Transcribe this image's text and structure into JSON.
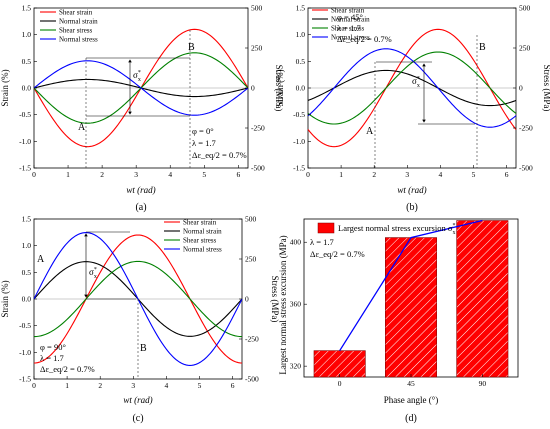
{
  "figure": {
    "panels": [
      {
        "id": "a",
        "label": "(a)"
      },
      {
        "id": "b",
        "label": "(b)"
      },
      {
        "id": "c",
        "label": "(c)"
      },
      {
        "id": "d",
        "label": "(d)"
      }
    ]
  },
  "chart_data": [
    {
      "panel": "(a)",
      "type": "line",
      "xlabel": "wt (rad)",
      "ylabel_left": "Strain (%)",
      "ylabel_right": "Stress (MPa)",
      "xlim": [
        0,
        6.2832
      ],
      "ylim_left": [
        -1.5,
        1.5
      ],
      "ylim_right": [
        -500,
        500
      ],
      "xticks": [
        "0",
        "1",
        "2",
        "3",
        "4",
        "5",
        "6"
      ],
      "yticks_left": [
        "-1.5",
        "-1.0",
        "-0.5",
        "0.0",
        "0.5",
        "1.0",
        "1.5"
      ],
      "yticks_right": [
        "-500",
        "-250",
        "0",
        "250",
        "500"
      ],
      "series": [
        {
          "name": "Shear strain",
          "color": "#ff0000",
          "axis": "left",
          "amplitude": 1.1,
          "phase_deg": 180
        },
        {
          "name": "Normal strain",
          "color": "#000000",
          "axis": "left",
          "amplitude": 0.16,
          "phase_deg": 0
        },
        {
          "name": "Shear stress",
          "color": "#008000",
          "axis": "right",
          "amplitude": 220,
          "phase_deg": 180
        },
        {
          "name": "Normal stress",
          "color": "#0000ff",
          "axis": "right",
          "amplitude": 170,
          "phase_deg": 0
        }
      ],
      "legend": "top-left",
      "annotations": {
        "point_a": "A",
        "point_b": "B",
        "sigma_label": "σ",
        "sigma_sup": "*",
        "sigma_sub": "x",
        "params": [
          "φ = 0°",
          "λ = 1.7",
          "Δε_eq/2 = 0.7%"
        ]
      }
    },
    {
      "panel": "(b)",
      "type": "line",
      "xlabel": "wt (rad)",
      "ylabel_left": "Strain (%)",
      "ylabel_right": "Stress (MPa)",
      "xlim": [
        0,
        6.2832
      ],
      "ylim_left": [
        -1.5,
        1.5
      ],
      "ylim_right": [
        -500,
        500
      ],
      "xticks": [
        "0",
        "1",
        "2",
        "3",
        "4",
        "5",
        "6"
      ],
      "yticks_left": [
        "-1.5",
        "-1.0",
        "-0.5",
        "0.0",
        "0.5",
        "1.0",
        "1.5"
      ],
      "yticks_right": [
        "-500",
        "-250",
        "0",
        "250",
        "500"
      ],
      "series": [
        {
          "name": "Shear strain",
          "color": "#ff0000",
          "axis": "left",
          "amplitude": 1.1,
          "phase_deg": 135
        },
        {
          "name": "Normal strain",
          "color": "#000000",
          "axis": "left",
          "amplitude": 0.33,
          "phase_deg": 45
        },
        {
          "name": "Shear stress",
          "color": "#008000",
          "axis": "right",
          "amplitude": 225,
          "phase_deg": 135
        },
        {
          "name": "Normal stress",
          "color": "#0000ff",
          "axis": "right",
          "amplitude": 245,
          "phase_deg": 45
        }
      ],
      "legend": "top-left",
      "annotations": {
        "point_a": "A",
        "point_b": "B",
        "sigma_label": "σ",
        "sigma_sup": "*",
        "sigma_sub": "x",
        "params": [
          "φ = 45°",
          "λ = 1.7",
          "Δε_eq/2 = 0.7%"
        ]
      }
    },
    {
      "panel": "(c)",
      "type": "line",
      "xlabel": "wt (rad)",
      "ylabel_left": "Strain (%)",
      "ylabel_right": "Stress (MPa)",
      "xlim": [
        0,
        6.2832
      ],
      "ylim_left": [
        -1.5,
        1.5
      ],
      "ylim_right": [
        -500,
        500
      ],
      "xticks": [
        "0",
        "1",
        "2",
        "3",
        "4",
        "5",
        "6"
      ],
      "yticks_left": [
        "-1.5",
        "-1.0",
        "-0.5",
        "0.0",
        "0.5",
        "1.0",
        "1.5"
      ],
      "yticks_right": [
        "-500",
        "-250",
        "0",
        "250",
        "500"
      ],
      "series": [
        {
          "name": "Shear strain",
          "color": "#ff0000",
          "axis": "left",
          "amplitude": 1.2,
          "phase_deg": 90
        },
        {
          "name": "Normal strain",
          "color": "#000000",
          "axis": "left",
          "amplitude": 0.7,
          "phase_deg": 0
        },
        {
          "name": "Shear stress",
          "color": "#008000",
          "axis": "right",
          "amplitude": 235,
          "phase_deg": 90
        },
        {
          "name": "Normal stress",
          "color": "#0000ff",
          "axis": "right",
          "amplitude": 415,
          "phase_deg": 0
        }
      ],
      "legend": "top-right",
      "annotations": {
        "point_a": "A",
        "point_b": "B",
        "sigma_label": "σ",
        "sigma_sup": "*",
        "sigma_sub": "x",
        "params": [
          "φ = 90°",
          "λ = 1.7",
          "Δε_eq/2 = 0.7%"
        ]
      }
    },
    {
      "panel": "(d)",
      "type": "bar",
      "categories": [
        "0",
        "45",
        "90"
      ],
      "values": [
        330,
        403,
        414
      ],
      "line_values": [
        330,
        403,
        414
      ],
      "bar_color": "#ff0000",
      "line_color": "#0000ff",
      "xlabel": "Phase angle (°)",
      "ylabel": "Largest normal stress excursion (MPa)",
      "ylim": [
        313,
        415
      ],
      "yticks": [
        "320",
        "360",
        "400"
      ],
      "legend_label": "Largest normal stress excursion σ",
      "legend": "top",
      "params": [
        "λ = 1.7",
        "Δε_eq/2 = 0.7%"
      ]
    }
  ]
}
